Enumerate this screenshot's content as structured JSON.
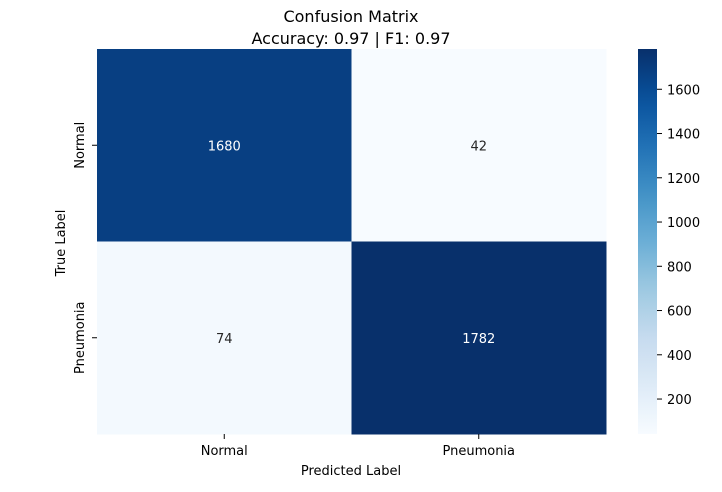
{
  "chart_data": {
    "type": "heatmap",
    "title": "Confusion Matrix",
    "subtitle": "Accuracy: 0.97 | F1: 0.97",
    "xlabel": "Predicted Label",
    "ylabel": "True Label",
    "x_categories": [
      "Normal",
      "Pneumonia"
    ],
    "y_categories": [
      "Normal",
      "Pneumonia"
    ],
    "values": [
      [
        1680,
        42
      ],
      [
        74,
        1782
      ]
    ],
    "colormap": "Blues",
    "colorbar": {
      "range": [
        42,
        1782
      ],
      "ticks": [
        200,
        400,
        600,
        800,
        1000,
        1200,
        1400,
        1600
      ]
    },
    "colors": {
      "low": "#f7fbff",
      "high": "#08306b"
    }
  }
}
